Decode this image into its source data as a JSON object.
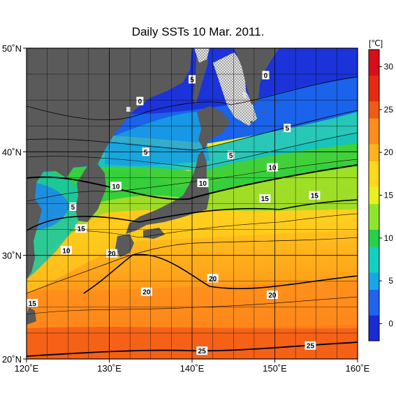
{
  "title": "Daily SSTs 10 Mar. 2011.",
  "map": {
    "lon_range": [
      120,
      160
    ],
    "lat_range": [
      20,
      50
    ],
    "lon_ticks": [
      {
        "value": 120,
        "label": "120˚E"
      },
      {
        "value": 130,
        "label": "130˚E"
      },
      {
        "value": 140,
        "label": "140˚E"
      },
      {
        "value": 150,
        "label": "150˚E"
      },
      {
        "value": 160,
        "label": "160˚E"
      }
    ],
    "lat_ticks": [
      {
        "value": 50,
        "label": "50˚N"
      },
      {
        "value": 40,
        "label": "40˚N"
      },
      {
        "value": 30,
        "label": "30˚N"
      },
      {
        "value": 20,
        "label": "20˚N"
      }
    ],
    "land_color": "#5a5a5a",
    "sea_ice": "dotted pattern",
    "grid": true
  },
  "colorbar": {
    "unit": "[℃]",
    "range": [
      -2,
      32
    ],
    "ticks": [
      {
        "value": 30,
        "label": "30"
      },
      {
        "value": 25,
        "label": "25"
      },
      {
        "value": 20,
        "label": "20"
      },
      {
        "value": 15,
        "label": "15"
      },
      {
        "value": 10,
        "label": "10"
      },
      {
        "value": 5,
        "label": "5"
      },
      {
        "value": 0,
        "label": "0"
      }
    ],
    "colors": [
      "#1a2bd6",
      "#1f63f0",
      "#17a7e8",
      "#12d0c0",
      "#25d24a",
      "#8ee62a",
      "#e8f020",
      "#ffd91a",
      "#ffb21a",
      "#ff8c1a",
      "#f05a14",
      "#e82a12",
      "#d80e1a"
    ]
  },
  "contour_labels": [
    {
      "label": "0",
      "lon": 133.7,
      "lat": 44.9
    },
    {
      "label": "0",
      "lon": 148.9,
      "lat": 47.4
    },
    {
      "label": "5",
      "lon": 140.0,
      "lat": 47.0
    },
    {
      "label": "5",
      "lon": 151.5,
      "lat": 42.3
    },
    {
      "label": "5",
      "lon": 134.4,
      "lat": 40.0
    },
    {
      "label": "5",
      "lon": 144.7,
      "lat": 39.7
    },
    {
      "label": "5",
      "lon": 125.6,
      "lat": 34.7
    },
    {
      "label": "10",
      "lon": 130.8,
      "lat": 36.7
    },
    {
      "label": "10",
      "lon": 141.3,
      "lat": 37.0
    },
    {
      "label": "10",
      "lon": 149.7,
      "lat": 38.5
    },
    {
      "label": "10",
      "lon": 124.8,
      "lat": 30.5
    },
    {
      "label": "15",
      "lon": 126.6,
      "lat": 32.6
    },
    {
      "label": "15",
      "lon": 148.8,
      "lat": 35.5
    },
    {
      "label": "15",
      "lon": 154.8,
      "lat": 35.8
    },
    {
      "label": "15",
      "lon": 120.7,
      "lat": 25.4
    },
    {
      "label": "20",
      "lon": 130.3,
      "lat": 30.2
    },
    {
      "label": "20",
      "lon": 134.5,
      "lat": 26.5
    },
    {
      "label": "20",
      "lon": 142.5,
      "lat": 27.8
    },
    {
      "label": "20",
      "lon": 149.7,
      "lat": 26.2
    },
    {
      "label": "25",
      "lon": 141.2,
      "lat": 20.8
    },
    {
      "label": "25",
      "lon": 154.3,
      "lat": 21.3
    }
  ]
}
